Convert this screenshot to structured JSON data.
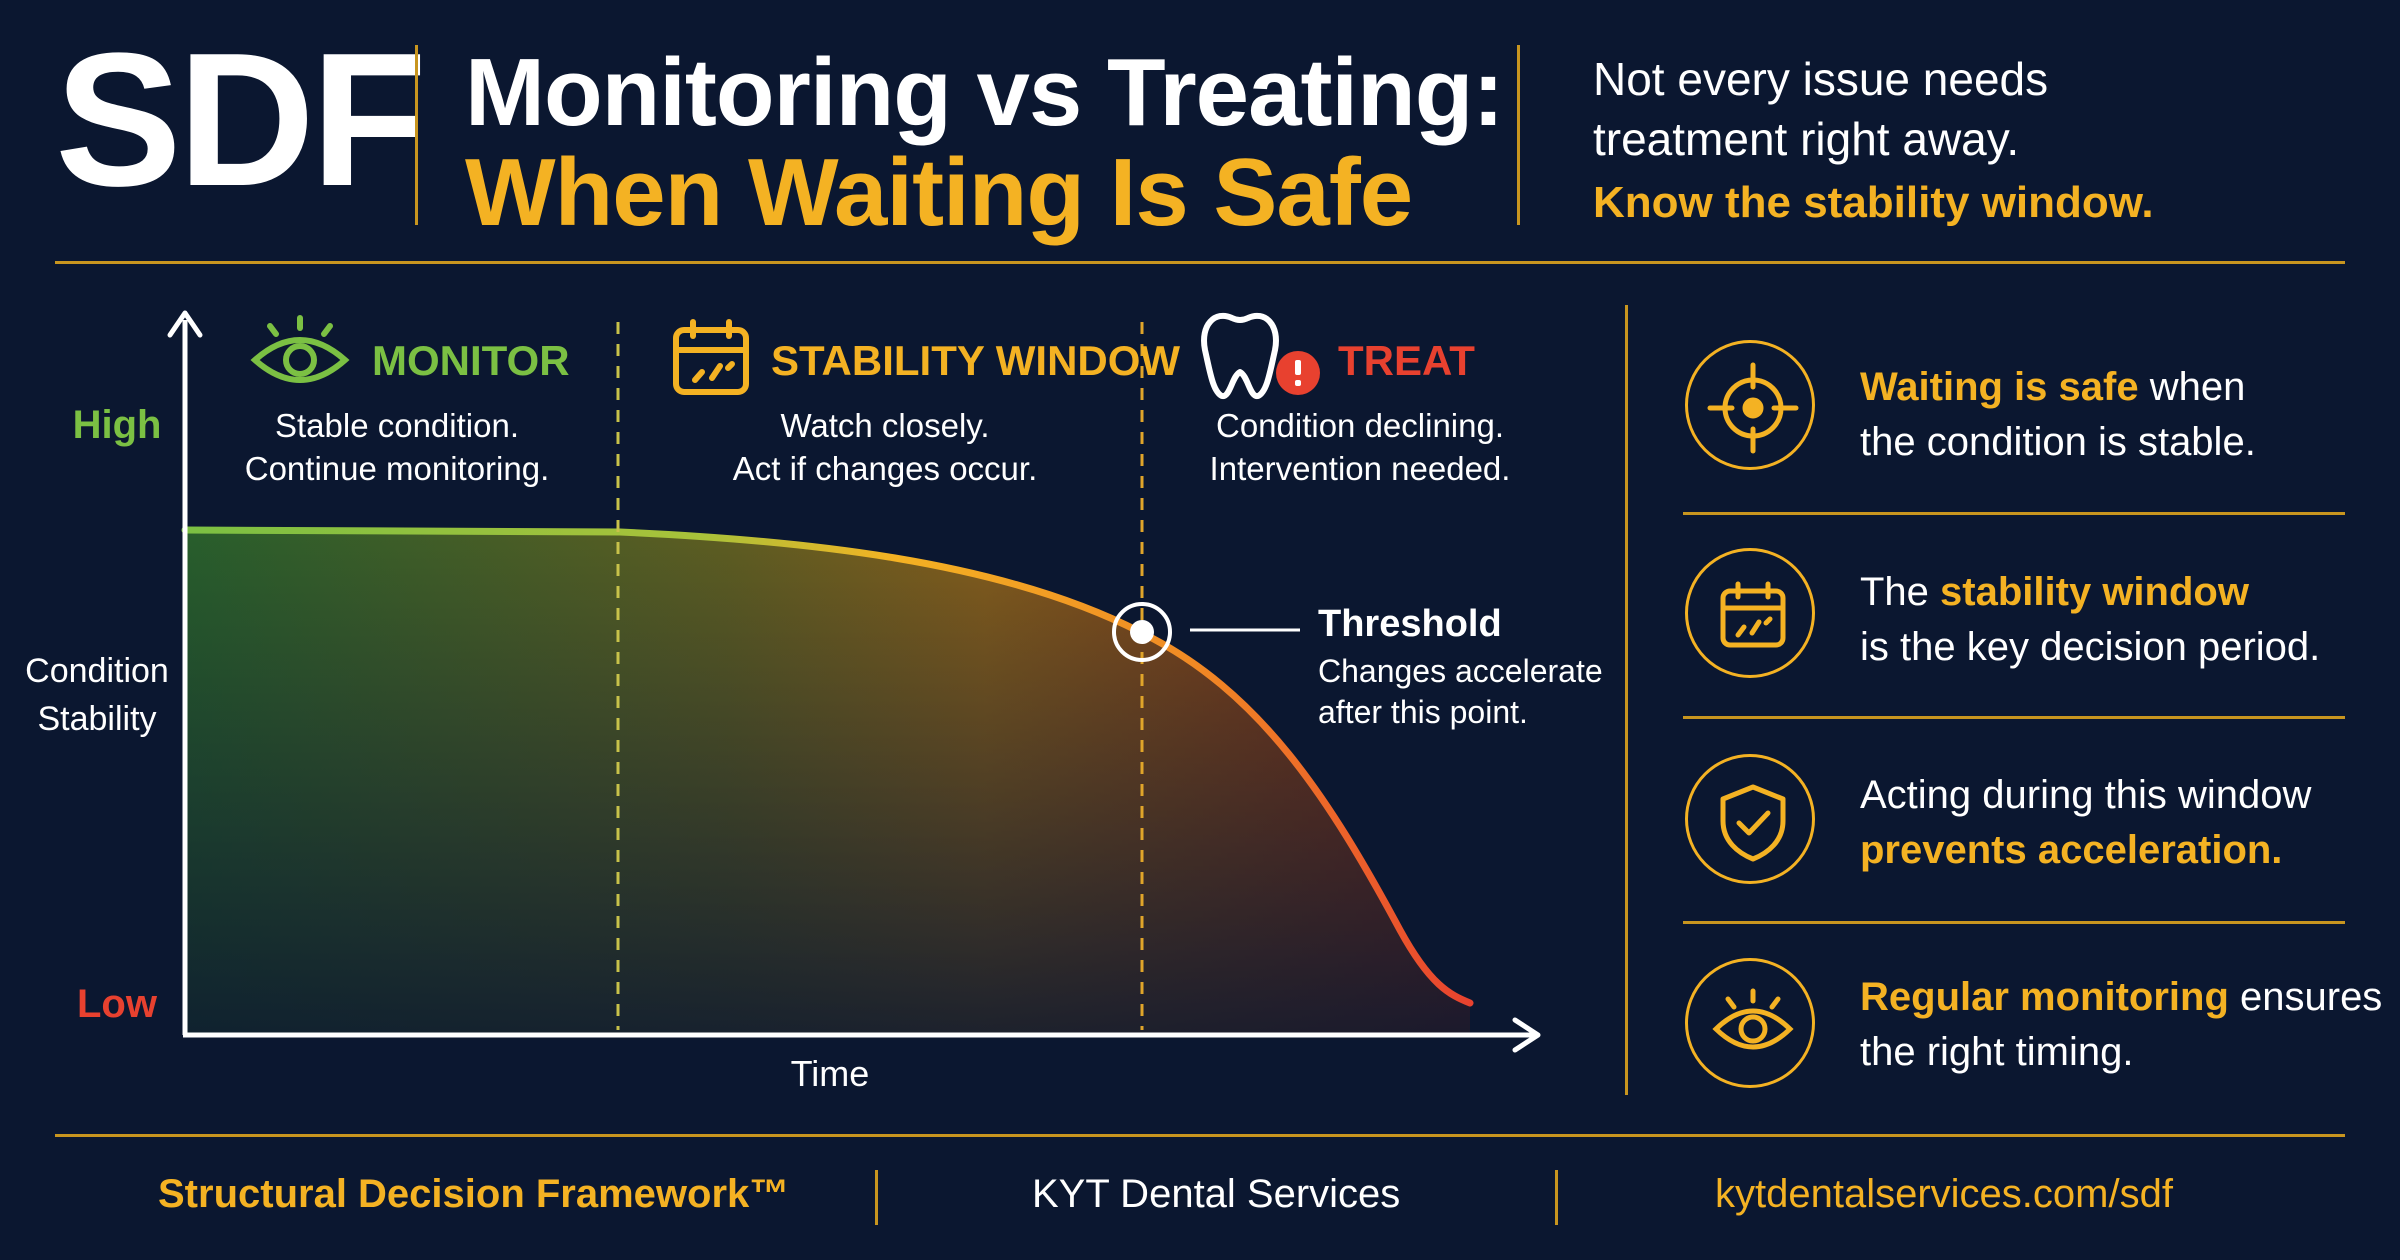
{
  "header": {
    "brand": "SDF",
    "title_line1": "Monitoring vs Treating:",
    "title_line2": "When Waiting Is Safe",
    "tagline_line1": "Not every issue needs",
    "tagline_line2": "treatment right away.",
    "tagline_line3": "Know the stability window."
  },
  "chart": {
    "y_axis": {
      "label_line1": "Condition",
      "label_line2": "Stability",
      "high": "High",
      "low": "Low"
    },
    "x_axis": {
      "label": "Time"
    },
    "zones": [
      {
        "title": "MONITOR",
        "line1": "Stable condition.",
        "line2": "Continue monitoring.",
        "icon": "eye-icon",
        "color": "#7bc043"
      },
      {
        "title": "STABILITY WINDOW",
        "line1": "Watch closely.",
        "line2": "Act if changes occur.",
        "icon": "calendar-icon",
        "color": "#f4b223"
      },
      {
        "title": "TREAT",
        "line1": "Condition declining.",
        "line2": "Intervention needed.",
        "icon": "tooth-alert-icon",
        "color": "#e8412f"
      }
    ],
    "threshold": {
      "title": "Threshold",
      "line1": "Changes accelerate",
      "line2": "after this point."
    }
  },
  "side_panel": {
    "items": [
      {
        "icon": "target-icon",
        "l1a": "Waiting is safe",
        "l1b": " when",
        "l2a": "",
        "l2b": "the condition is stable."
      },
      {
        "icon": "calendar-icon",
        "l1a": "The ",
        "l1b": "stability window",
        "l2a": "",
        "l2b": "is the key decision period."
      },
      {
        "icon": "shield-check-icon",
        "l1a": "Acting during this window",
        "l1b": "",
        "l2a": "prevents acceleration.",
        "l2b": ""
      },
      {
        "icon": "eye-icon",
        "l1a": "Regular monitoring",
        "l1b": " ensures",
        "l2a": "",
        "l2b": "the right timing."
      }
    ]
  },
  "footer": {
    "framework": "Structural Decision Framework™",
    "company": "KYT Dental Services",
    "url": "kytdentalservices.com/sdf"
  },
  "colors": {
    "accent": "#f4b223",
    "background": "#0b1730",
    "green": "#7bc043",
    "red": "#e8412f"
  }
}
